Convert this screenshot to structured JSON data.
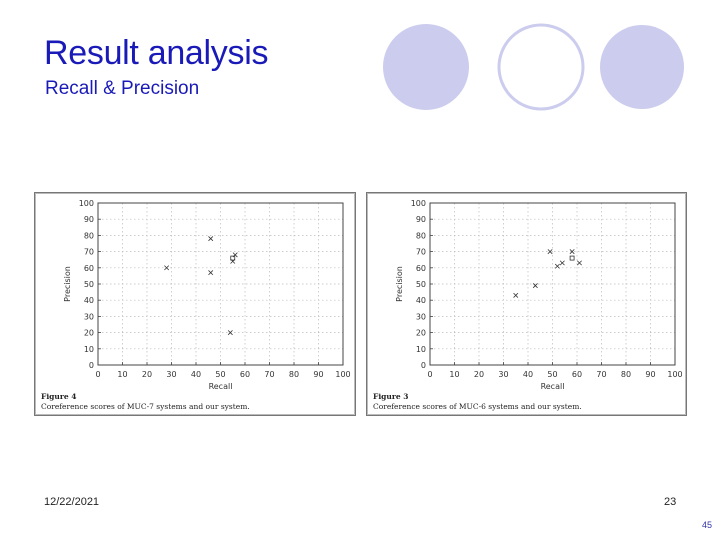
{
  "slide": {
    "title": "Result analysis",
    "subtitle": "Recall & Precision",
    "date": "12/22/2021",
    "page": "23",
    "corner_number": "45",
    "accent_color": "#ccccee"
  },
  "chart_data": [
    {
      "type": "scatter",
      "figure_label": "Figure 4",
      "caption": "Coreference scores of MUC-7 systems and our system.",
      "xlabel": "Recall",
      "ylabel": "Precision",
      "xlim": [
        0,
        100
      ],
      "ylim": [
        0,
        100
      ],
      "xticks": [
        0,
        10,
        20,
        30,
        40,
        50,
        60,
        70,
        80,
        90,
        100
      ],
      "yticks": [
        0,
        10,
        20,
        30,
        40,
        50,
        60,
        70,
        80,
        90,
        100
      ],
      "grid": true,
      "series": [
        {
          "marker": "x",
          "points": [
            [
              28,
              60
            ],
            [
              46,
              78
            ],
            [
              46,
              57
            ],
            [
              55,
              64
            ],
            [
              56,
              68
            ],
            [
              54,
              20
            ]
          ]
        },
        {
          "marker": "square",
          "points": [
            [
              55,
              66
            ]
          ]
        }
      ]
    },
    {
      "type": "scatter",
      "figure_label": "Figure 3",
      "caption": "Coreference scores of MUC-6 systems and our system.",
      "xlabel": "Recall",
      "ylabel": "Precision",
      "xlim": [
        0,
        100
      ],
      "ylim": [
        0,
        100
      ],
      "xticks": [
        0,
        10,
        20,
        30,
        40,
        50,
        60,
        70,
        80,
        90,
        100
      ],
      "yticks": [
        0,
        10,
        20,
        30,
        40,
        50,
        60,
        70,
        80,
        90,
        100
      ],
      "grid": true,
      "series": [
        {
          "marker": "x",
          "points": [
            [
              35,
              43
            ],
            [
              43,
              49
            ],
            [
              49,
              70
            ],
            [
              52,
              61
            ],
            [
              54,
              63
            ],
            [
              58,
              70
            ],
            [
              61,
              63
            ]
          ]
        },
        {
          "marker": "square",
          "points": [
            [
              58,
              66
            ]
          ]
        }
      ]
    }
  ]
}
